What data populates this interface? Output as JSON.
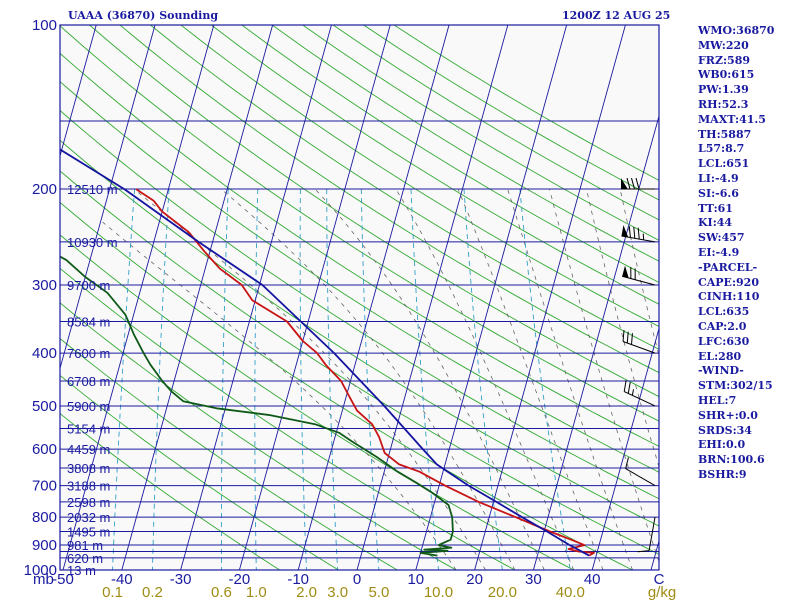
{
  "header": {
    "title": "UAAA (36870) Sounding",
    "time": "1200Z 12 AUG 25"
  },
  "params": [
    "WMO:36870",
    "MW:220",
    "FRZ:589",
    "WB0:615",
    "PW:1.39",
    "RH:52.3",
    "MAXT:41.5",
    "TH:5887",
    "L57:8.7",
    "LCL:651",
    "LI:-4.9",
    "SI:-6.6",
    "TT:61",
    "KI:44",
    "SW:457",
    "EI:-4.9",
    "-PARCEL-",
    "CAPE:920",
    "CINH:110",
    "LCL:635",
    "CAP:2.0",
    "LFC:630",
    "EL:280",
    "-WIND-",
    "STM:302/15",
    "HEL:7",
    "SHR+:0.0",
    "SRDS:34",
    "EHI:0.0",
    "BRN:100.6",
    "BSHR:9"
  ],
  "colors": {
    "background": "#ffffff",
    "frame": "#1a1aa0",
    "isobar": "#1a1aa0",
    "isotherm": "#1a1aa0",
    "dry_adiabat": "#33aa33",
    "mixing_ratio": "#33a0c8",
    "moist_adiabat": "#666666",
    "temperature": "#c81414",
    "dewpoint": "#0f5a19",
    "parcel": "#1414a0",
    "bottom_labels": "#a08c14",
    "wind_barbs": "#000000"
  },
  "chart_data": {
    "type": "line",
    "title": "UAAA (36870) Sounding",
    "subtitle": "1200Z 12 AUG 25",
    "diagram": "skew-T log-P",
    "y_axis": {
      "label": "mb",
      "scale": "log",
      "reversed": true,
      "range": [
        1000,
        100
      ],
      "ticks": [
        100,
        200,
        300,
        400,
        500,
        600,
        700,
        800,
        900,
        1000
      ]
    },
    "x_axis": {
      "label": "C",
      "range": [
        -50,
        50
      ],
      "ticks": [
        -50,
        -40,
        -30,
        -20,
        -10,
        0,
        10,
        20,
        30,
        40
      ]
    },
    "isobars_mb": [
      100,
      150,
      200,
      250,
      300,
      350,
      400,
      450,
      500,
      550,
      600,
      650,
      700,
      750,
      800,
      850,
      900,
      925,
      950,
      1000
    ],
    "isotherms_c": [
      -130,
      -120,
      -110,
      -100,
      -90,
      -80,
      -70,
      -60,
      -50,
      -40,
      -30,
      -20,
      -10,
      0,
      10,
      20,
      30,
      40,
      50
    ],
    "dry_adiabats_k": [
      260,
      270,
      280,
      290,
      300,
      310,
      320,
      330,
      340,
      350,
      360,
      370,
      380,
      390,
      400,
      410,
      420,
      430,
      440,
      450,
      460,
      470,
      480,
      490
    ],
    "moist_adiabats_k": [
      290,
      295,
      300,
      305,
      310,
      315,
      320,
      325,
      330,
      335
    ],
    "mixing_ratio_lines": {
      "label": "g/kg",
      "values": [
        0.1,
        0.2,
        0.6,
        1.0,
        2.0,
        3.0,
        5.0,
        10.0,
        20.0,
        40.0
      ],
      "tick_labels": [
        "0.1",
        "0.2",
        "0.6",
        "1.0",
        "2.0",
        "3.0",
        "5.0",
        "10.0",
        "20.0",
        "40.0"
      ]
    },
    "height_labels": [
      {
        "p": 200,
        "text": "12510 m"
      },
      {
        "p": 250,
        "text": "10930 m"
      },
      {
        "p": 300,
        "text": "9700 m"
      },
      {
        "p": 350,
        "text": "8584 m"
      },
      {
        "p": 400,
        "text": "7600 m"
      },
      {
        "p": 450,
        "text": "6708 m"
      },
      {
        "p": 500,
        "text": "5900 m"
      },
      {
        "p": 550,
        "text": "5154 m"
      },
      {
        "p": 600,
        "text": "4459 m"
      },
      {
        "p": 650,
        "text": "3808 m"
      },
      {
        "p": 700,
        "text": "3188 m"
      },
      {
        "p": 750,
        "text": "2598 m"
      },
      {
        "p": 800,
        "text": "2032 m"
      },
      {
        "p": 850,
        "text": "1495 m"
      },
      {
        "p": 900,
        "text": "981 m"
      },
      {
        "p": 950,
        "text": "620 m"
      },
      {
        "p": 1000,
        "text": "13 m"
      }
    ],
    "series": [
      {
        "points": [
          {
            "p": 941,
            "t": 38.8
          },
          {
            "p": 930,
            "t": 39.5
          },
          {
            "p": 925,
            "t": 36.8
          },
          {
            "p": 915,
            "t": 35.0
          },
          {
            "p": 900,
            "t": 37.5
          },
          {
            "p": 880,
            "t": 35.0
          },
          {
            "p": 850,
            "t": 31.0
          },
          {
            "p": 800,
            "t": 24.5
          },
          {
            "p": 750,
            "t": 17.5
          },
          {
            "p": 700,
            "t": 11.0
          },
          {
            "p": 660,
            "t": 6.0
          },
          {
            "p": 640,
            "t": 2.2
          },
          {
            "p": 610,
            "t": -0.8
          },
          {
            "p": 570,
            "t": -2.5
          },
          {
            "p": 540,
            "t": -4.3
          },
          {
            "p": 510,
            "t": -7.5
          },
          {
            "p": 480,
            "t": -9.5
          },
          {
            "p": 450,
            "t": -11.6
          },
          {
            "p": 420,
            "t": -15.0
          },
          {
            "p": 400,
            "t": -17.0
          },
          {
            "p": 380,
            "t": -20.0
          },
          {
            "p": 350,
            "t": -23.6
          },
          {
            "p": 320,
            "t": -30.5
          },
          {
            "p": 300,
            "t": -33.0
          },
          {
            "p": 280,
            "t": -37.5
          },
          {
            "p": 260,
            "t": -41.0
          },
          {
            "p": 240,
            "t": -44.5
          },
          {
            "p": 220,
            "t": -50.0
          },
          {
            "p": 210,
            "t": -52.0
          },
          {
            "p": 200,
            "t": -55.5
          }
        ]
      },
      {
        "points": [
          {
            "p": 941,
            "t": 13.0
          },
          {
            "p": 930,
            "t": 10.0
          },
          {
            "p": 922,
            "t": 14.5
          },
          {
            "p": 918,
            "t": 10.5
          },
          {
            "p": 910,
            "t": 15.0
          },
          {
            "p": 900,
            "t": 12.7
          },
          {
            "p": 880,
            "t": 14.5
          },
          {
            "p": 850,
            "t": 14.5
          },
          {
            "p": 800,
            "t": 13.7
          },
          {
            "p": 760,
            "t": 12.5
          },
          {
            "p": 720,
            "t": 9.0
          },
          {
            "p": 690,
            "t": 5.8
          },
          {
            "p": 660,
            "t": 2.3
          },
          {
            "p": 620,
            "t": -2.0
          },
          {
            "p": 580,
            "t": -7.0
          },
          {
            "p": 560,
            "t": -9.5
          },
          {
            "p": 540,
            "t": -14.0
          },
          {
            "p": 520,
            "t": -22.0
          },
          {
            "p": 505,
            "t": -31.5
          },
          {
            "p": 490,
            "t": -37.5
          },
          {
            "p": 470,
            "t": -40.0
          },
          {
            "p": 450,
            "t": -42.0
          },
          {
            "p": 420,
            "t": -44.8
          },
          {
            "p": 400,
            "t": -46.5
          },
          {
            "p": 370,
            "t": -49.0
          },
          {
            "p": 340,
            "t": -51.4
          },
          {
            "p": 310,
            "t": -55.5
          },
          {
            "p": 290,
            "t": -60.0
          },
          {
            "p": 270,
            "t": -64.0
          },
          {
            "p": 250,
            "t": -70.5
          },
          {
            "p": 230,
            "t": -73.5
          },
          {
            "p": 210,
            "t": -77.5
          },
          {
            "p": 200,
            "t": -78.5
          }
        ]
      },
      {
        "points": [
          {
            "p": 941,
            "t": 38.8
          },
          {
            "p": 900,
            "t": 35.0
          },
          {
            "p": 850,
            "t": 30.5
          },
          {
            "p": 800,
            "t": 25.6
          },
          {
            "p": 750,
            "t": 20.5
          },
          {
            "p": 700,
            "t": 15.0
          },
          {
            "p": 660,
            "t": 10.8
          },
          {
            "p": 640,
            "t": 8.6
          },
          {
            "p": 600,
            "t": 5.5
          },
          {
            "p": 500,
            "t": -3.1
          },
          {
            "p": 400,
            "t": -14.1
          },
          {
            "p": 300,
            "t": -29.5
          },
          {
            "p": 250,
            "t": -42.4
          },
          {
            "p": 200,
            "t": -57.5
          },
          {
            "p": 150,
            "t": -79.5
          },
          {
            "p": 111,
            "t": -101.0
          }
        ]
      }
    ],
    "wind_barbs": [
      {
        "p": 200,
        "direction": 270,
        "speed_kt": 80
      },
      {
        "p": 250,
        "direction": 280,
        "speed_kt": 85
      },
      {
        "p": 300,
        "direction": 285,
        "speed_kt": 70
      },
      {
        "p": 400,
        "direction": 290,
        "speed_kt": 30
      },
      {
        "p": 500,
        "direction": 295,
        "speed_kt": 25
      },
      {
        "p": 700,
        "direction": 300,
        "speed_kt": 10
      },
      {
        "p": 800,
        "direction": 190,
        "speed_kt": 10
      }
    ]
  }
}
